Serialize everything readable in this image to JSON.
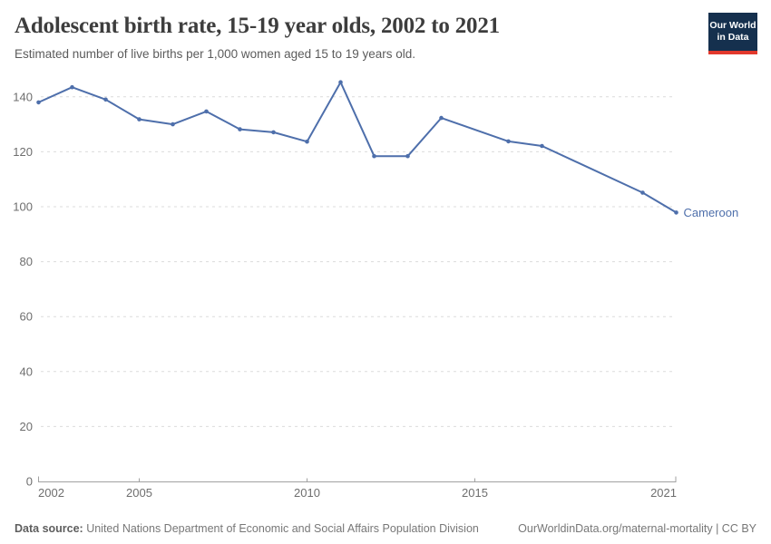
{
  "header": {
    "title": "Adolescent birth rate, 15-19 year olds, 2002 to 2021",
    "subtitle": "Estimated number of live births per 1,000 women aged 15 to 19 years old.",
    "logo": {
      "line1": "Our World",
      "line2": "in Data"
    }
  },
  "chart_data": {
    "type": "line",
    "title": "Adolescent birth rate, 15-19 year olds, 2002 to 2021",
    "ylabel": "Estimated number of live births per 1,000 women aged 15 to 19 years old",
    "series": [
      {
        "name": "Cameroon",
        "points": [
          [
            2002,
            138.0
          ],
          [
            2003,
            143.5
          ],
          [
            2004,
            139.0
          ],
          [
            2005,
            131.8
          ],
          [
            2006,
            130.0
          ],
          [
            2007,
            134.7
          ],
          [
            2008,
            128.2
          ],
          [
            2009,
            127.1
          ],
          [
            2010,
            123.7
          ],
          [
            2011,
            145.3
          ],
          [
            2012,
            118.4
          ],
          [
            2013,
            118.4
          ],
          [
            2014,
            132.3
          ],
          [
            2016,
            123.8
          ],
          [
            2017,
            122.1
          ],
          [
            2020,
            105.1
          ],
          [
            2021,
            97.9
          ]
        ]
      }
    ],
    "end_label": "Cameroon",
    "x_ticks": [
      2002,
      2005,
      2010,
      2015,
      2021
    ],
    "y_ticks": [
      0,
      20,
      40,
      60,
      80,
      100,
      120,
      140
    ],
    "xlim": [
      2002,
      2021
    ],
    "ylim": [
      0,
      148
    ],
    "grid": "horizontal-dashed",
    "legend_position": "end-of-line",
    "colors": {
      "line": "#4e6fab",
      "grid": "#dcdcdc",
      "axis": "#a1a1a1",
      "tick_text": "#6e6e6e",
      "end_label_text": "#4e6fab"
    }
  },
  "footer": {
    "datasource_label": "Data source:",
    "datasource_text": " United Nations Department of Economic and Social Affairs Population Division",
    "link": "OurWorldinData.org/maternal-mortality | CC BY"
  }
}
